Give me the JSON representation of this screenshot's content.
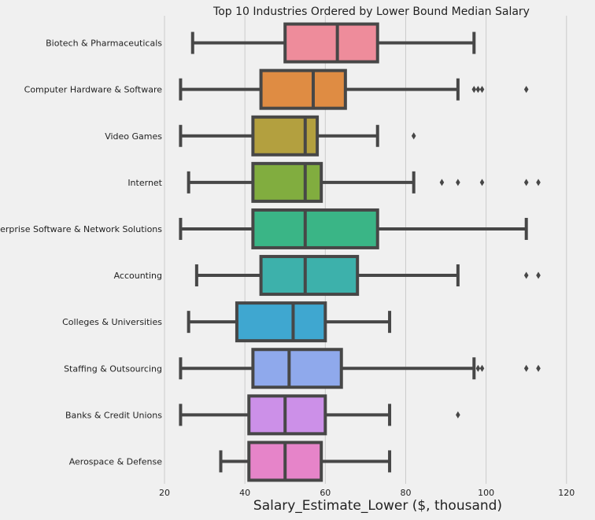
{
  "chart_data": {
    "type": "box",
    "title": "Top 10 Industries Ordered by Lower Bound Median Salary",
    "xlabel": "Salary_Estimate_Lower ($, thousand)",
    "ylabel": "",
    "xlim": [
      20,
      122
    ],
    "xticks": [
      20,
      40,
      60,
      80,
      100,
      120
    ],
    "grid": "vertical",
    "boxes": [
      {
        "category": "Biotech & Pharmaceuticals",
        "whislo": 27,
        "q1": 50,
        "med": 63,
        "q3": 73,
        "whishi": 97,
        "fliers": [],
        "color": "#ee8c9b"
      },
      {
        "category": "Computer Hardware & Software",
        "whislo": 24,
        "q1": 44,
        "med": 57,
        "q3": 65,
        "whishi": 93,
        "fliers": [
          97,
          98,
          99,
          110
        ],
        "color": "#df8c43"
      },
      {
        "category": "Video Games",
        "whislo": 24,
        "q1": 42,
        "med": 55,
        "q3": 58,
        "whishi": 73,
        "fliers": [
          82
        ],
        "color": "#b3a03f"
      },
      {
        "category": "Internet",
        "whislo": 26,
        "q1": 42,
        "med": 55,
        "q3": 59,
        "whishi": 82,
        "fliers": [
          89,
          93,
          99,
          110,
          113
        ],
        "color": "#81ad3f"
      },
      {
        "category": "Enterprise Software & Network Solutions",
        "whislo": 24,
        "q1": 42,
        "med": 55,
        "q3": 73,
        "whishi": 110,
        "fliers": [],
        "color": "#3ab586"
      },
      {
        "category": "Accounting",
        "whislo": 28,
        "q1": 44,
        "med": 55,
        "q3": 68,
        "whishi": 93,
        "fliers": [
          110,
          113
        ],
        "color": "#3db1ab"
      },
      {
        "category": "Colleges & Universities",
        "whislo": 26,
        "q1": 38,
        "med": 52,
        "q3": 60,
        "whishi": 76,
        "fliers": [],
        "color": "#3fa7d0"
      },
      {
        "category": "Staffing & Outsourcing",
        "whislo": 24,
        "q1": 42,
        "med": 51,
        "q3": 64,
        "whishi": 97,
        "fliers": [
          98,
          99,
          110,
          113
        ],
        "color": "#8fa9ec"
      },
      {
        "category": "Banks & Credit Unions",
        "whislo": 24,
        "q1": 41,
        "med": 50,
        "q3": 60,
        "whishi": 76,
        "fliers": [
          93
        ],
        "color": "#cc90e8"
      },
      {
        "category": "Aerospace & Defense",
        "whislo": 34,
        "q1": 41,
        "med": 50,
        "q3": 59,
        "whishi": 76,
        "fliers": [],
        "color": "#e684c9"
      }
    ]
  }
}
